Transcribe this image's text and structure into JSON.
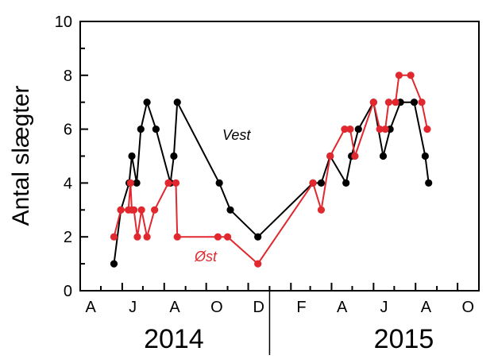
{
  "chart_data": {
    "type": "line",
    "ylabel": "Antal slægter",
    "ylim": [
      0,
      10
    ],
    "yticks": [
      0,
      2,
      4,
      6,
      8,
      10
    ],
    "xlim": [
      "2014-04-01",
      "2015-11-01"
    ],
    "months": [
      {
        "label": "A",
        "date": "2014-04-01"
      },
      {
        "label": "J",
        "date": "2014-06-01"
      },
      {
        "label": "A",
        "date": "2014-08-01"
      },
      {
        "label": "O",
        "date": "2014-10-01"
      },
      {
        "label": "D",
        "date": "2014-12-01"
      },
      {
        "label": "F",
        "date": "2015-02-01"
      },
      {
        "label": "A",
        "date": "2015-04-01"
      },
      {
        "label": "J",
        "date": "2015-06-01"
      },
      {
        "label": "A",
        "date": "2015-08-01"
      },
      {
        "label": "O",
        "date": "2015-10-01"
      }
    ],
    "years": [
      {
        "label": "2014",
        "center": "2014-08-15"
      },
      {
        "label": "2015",
        "center": "2015-07-15"
      }
    ],
    "year_divider": "2015-01-01",
    "grid": false,
    "legend": "inline annotations",
    "series": [
      {
        "name": "Vest",
        "color": "#000000",
        "points": [
          [
            "2014-05-20",
            1
          ],
          [
            "2014-05-30",
            3
          ],
          [
            "2014-06-11",
            4
          ],
          [
            "2014-06-15",
            5
          ],
          [
            "2014-06-22",
            4
          ],
          [
            "2014-06-28",
            6
          ],
          [
            "2014-07-07",
            7
          ],
          [
            "2014-07-20",
            6
          ],
          [
            "2014-08-10",
            4
          ],
          [
            "2014-08-15",
            5
          ],
          [
            "2014-08-20",
            7
          ],
          [
            "2014-10-20",
            4
          ],
          [
            "2014-11-05",
            3
          ],
          [
            "2014-12-15",
            2
          ],
          [
            "2015-03-05",
            4
          ],
          [
            "2015-03-17",
            4
          ],
          [
            "2015-03-30",
            5
          ],
          [
            "2015-04-22",
            4
          ],
          [
            "2015-04-30",
            5
          ],
          [
            "2015-05-10",
            6
          ],
          [
            "2015-06-01",
            7
          ],
          [
            "2015-06-15",
            5
          ],
          [
            "2015-06-25",
            6
          ],
          [
            "2015-07-10",
            7
          ],
          [
            "2015-07-30",
            7
          ],
          [
            "2015-08-15",
            5
          ],
          [
            "2015-08-20",
            4
          ]
        ]
      },
      {
        "name": "Øst",
        "color": "#e0282e",
        "points": [
          [
            "2014-05-20",
            2
          ],
          [
            "2014-05-30",
            3
          ],
          [
            "2014-06-10",
            3
          ],
          [
            "2014-06-13",
            4
          ],
          [
            "2014-06-15",
            3
          ],
          [
            "2014-06-18",
            3
          ],
          [
            "2014-06-23",
            2
          ],
          [
            "2014-06-29",
            3
          ],
          [
            "2014-07-07",
            2
          ],
          [
            "2014-07-18",
            3
          ],
          [
            "2014-08-07",
            4
          ],
          [
            "2014-08-18",
            4
          ],
          [
            "2014-08-20",
            2
          ],
          [
            "2014-10-18",
            2
          ],
          [
            "2014-11-01",
            2
          ],
          [
            "2014-12-15",
            1
          ],
          [
            "2015-03-05",
            4
          ],
          [
            "2015-03-17",
            3
          ],
          [
            "2015-03-30",
            5
          ],
          [
            "2015-04-20",
            6
          ],
          [
            "2015-04-28",
            6
          ],
          [
            "2015-05-05",
            5
          ],
          [
            "2015-06-01",
            7
          ],
          [
            "2015-06-10",
            6
          ],
          [
            "2015-06-18",
            6
          ],
          [
            "2015-06-23",
            7
          ],
          [
            "2015-07-03",
            7
          ],
          [
            "2015-07-08",
            8
          ],
          [
            "2015-07-25",
            8
          ],
          [
            "2015-08-10",
            7
          ],
          [
            "2015-08-18",
            6
          ]
        ]
      }
    ],
    "annotations": [
      {
        "text": "Vest",
        "series": "Vest"
      },
      {
        "text": "Øst",
        "series": "Øst"
      }
    ]
  }
}
